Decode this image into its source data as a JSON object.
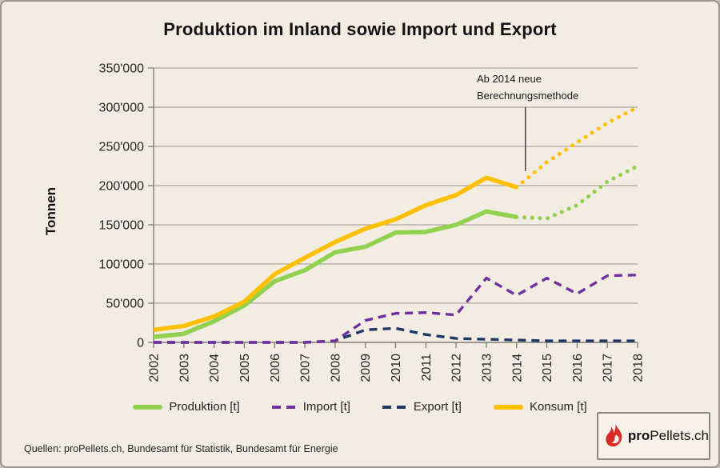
{
  "title": "Produktion im Inland sowie Import und Export",
  "source_line": "Quellen: proPellets.ch, Bundesamt für Statistik, Bundesamt für Energie",
  "logo": {
    "bold_part": "pro",
    "regular_part": "Pellets.ch",
    "flame_color": "#d92b27"
  },
  "colors": {
    "background": "#F2ECE3",
    "grid": "#9b958e",
    "axis": "#7e7a75",
    "text": "#262626",
    "produktion": "#92D050",
    "import": "#7030A0",
    "export": "#1F3864",
    "konsum": "#FFC000"
  },
  "chart_data": {
    "type": "line",
    "title": "Produktion im Inland sowie Import und Export",
    "ylabel": "Tonnen",
    "xlabel": "",
    "x": [
      2002,
      2003,
      2004,
      2005,
      2006,
      2007,
      2008,
      2009,
      2010,
      2011,
      2012,
      2013,
      2014,
      2015,
      2016,
      2017,
      2018
    ],
    "ylim": [
      0,
      350000
    ],
    "ytick_step": 50000,
    "ytick_labels": [
      "0",
      "50'000",
      "100'000",
      "150'000",
      "200'000",
      "250'000",
      "300'000",
      "350'000"
    ],
    "grid": true,
    "legend_position": "bottom",
    "annotation": {
      "lines": [
        "Ab 2014 neue",
        "Berechnungsmethode"
      ],
      "points_at_x": 2014
    },
    "series": [
      {
        "name": "Produktion [t]",
        "color": "#92D050",
        "style": "solid",
        "dotted_from": 2014,
        "values": [
          7000,
          11000,
          27000,
          47000,
          78000,
          92000,
          115000,
          122000,
          140000,
          141000,
          150000,
          167000,
          160000,
          158000,
          175000,
          205000,
          225000
        ]
      },
      {
        "name": "Import [t]",
        "color": "#7030A0",
        "style": "dashed",
        "values": [
          0,
          0,
          0,
          0,
          0,
          0,
          2000,
          28000,
          37000,
          38000,
          35000,
          82000,
          60000,
          82000,
          62000,
          85000,
          86000
        ]
      },
      {
        "name": "Export [t]",
        "color": "#1F3864",
        "style": "dashed",
        "values": [
          0,
          0,
          0,
          0,
          0,
          0,
          2000,
          16000,
          18000,
          10000,
          5000,
          4000,
          3000,
          2000,
          2000,
          2000,
          2000
        ]
      },
      {
        "name": "Konsum [t]",
        "color": "#FFC000",
        "style": "solid",
        "dotted_from": 2014,
        "values": [
          16000,
          21000,
          33000,
          52000,
          87000,
          108000,
          128000,
          145000,
          157000,
          175000,
          188000,
          210000,
          198000,
          230000,
          255000,
          280000,
          300000
        ]
      }
    ]
  }
}
